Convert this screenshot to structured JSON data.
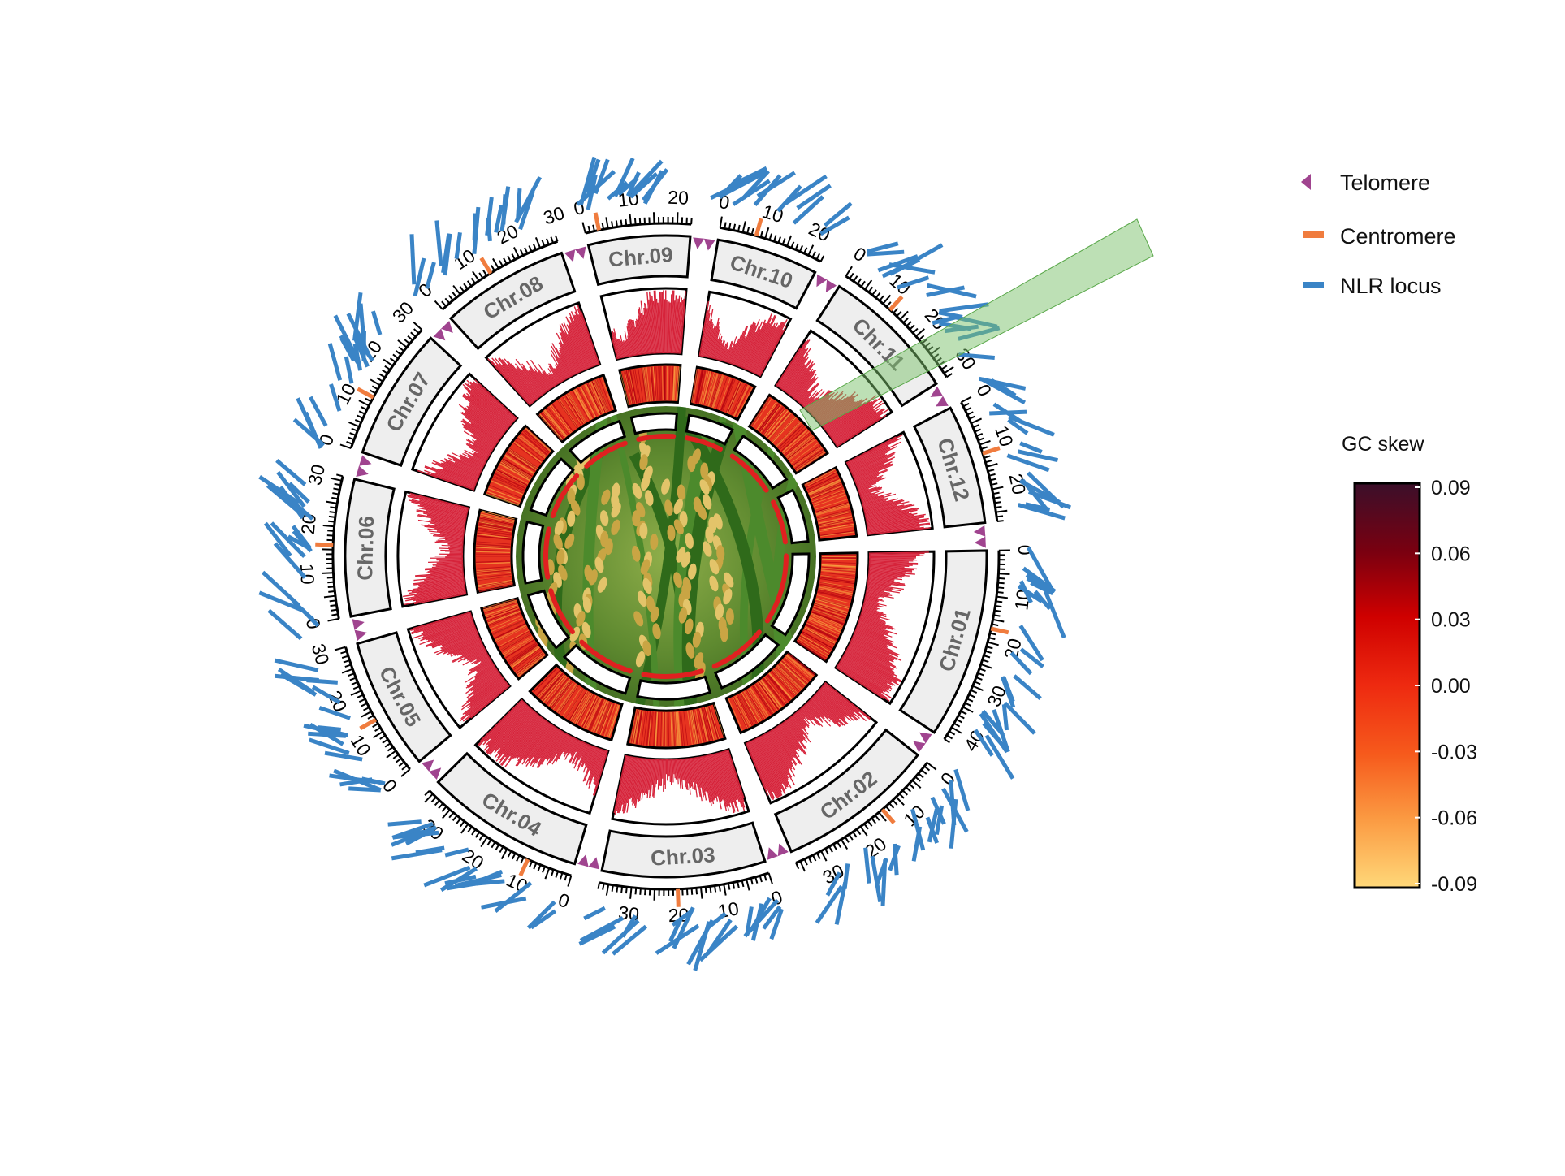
{
  "legend": {
    "items": [
      {
        "label": "Telomere",
        "icon": "telomere-triangle-icon",
        "color": "#a0448f"
      },
      {
        "label": "Centromere",
        "icon": "centromere-bar-icon",
        "color": "#f07c3e"
      },
      {
        "label": "NLR locus",
        "icon": "nlr-bar-icon",
        "color": "#3a84c6"
      }
    ]
  },
  "gc_skew_scale": {
    "title": "GC skew",
    "ticks": [
      "0.09",
      "0.06",
      "0.03",
      "0.00",
      "-0.03",
      "-0.06",
      "-0.09"
    ],
    "colors": [
      "#3b0f2a",
      "#7a0010",
      "#cf0000",
      "#ee2a10",
      "#f65a1c",
      "#fb9a42",
      "#ffd879"
    ]
  },
  "colors": {
    "chromosome_fill": "#eeeeee",
    "density": "#d6233a",
    "heat": "#e63320",
    "centromere": "#f07c3e",
    "telomere": "#a0448f",
    "nlr": "#3a84c6",
    "highlight": "#7bc26b",
    "gap_line": "#e02020"
  },
  "center_image": {
    "description_icon": "rice-panicle-photo"
  },
  "chromosomes": [
    {
      "name": "Chr.01",
      "length": 43,
      "ticks": [
        "0",
        "10",
        "20",
        "30",
        "40"
      ],
      "centromere": 17
    },
    {
      "name": "Chr.02",
      "length": 36,
      "ticks": [
        "0",
        "10",
        "20",
        "30"
      ],
      "centromere": 14
    },
    {
      "name": "Chr.03",
      "length": 37,
      "ticks": [
        "0",
        "10",
        "20",
        "30"
      ],
      "centromere": 20
    },
    {
      "name": "Chr.04",
      "length": 36,
      "ticks": [
        "0",
        "10",
        "20",
        "30"
      ],
      "centromere": 10
    },
    {
      "name": "Chr.05",
      "length": 30,
      "ticks": [
        "0",
        "10",
        "20",
        "30"
      ],
      "centromere": 13
    },
    {
      "name": "Chr.06",
      "length": 31,
      "ticks": [
        "0",
        "10",
        "20",
        "30"
      ],
      "centromere": 16
    },
    {
      "name": "Chr.07",
      "length": 30,
      "ticks": [
        "0",
        "10",
        "20",
        "30"
      ],
      "centromere": 12
    },
    {
      "name": "Chr.08",
      "length": 29,
      "ticks": [
        "0",
        "10",
        "20",
        "30"
      ],
      "centromere": 13
    },
    {
      "name": "Chr.09",
      "length": 23,
      "ticks": [
        "0",
        "10",
        "20"
      ],
      "centromere": 3
    },
    {
      "name": "Chr.10",
      "length": 23,
      "ticks": [
        "0",
        "10",
        "20"
      ],
      "centromere": 8
    },
    {
      "name": "Chr.11",
      "length": 31,
      "ticks": [
        "0",
        "10",
        "20",
        "30"
      ],
      "centromere": 12
    },
    {
      "name": "Chr.12",
      "length": 27,
      "ticks": [
        "0",
        "10",
        "20"
      ],
      "centromere": 12
    }
  ]
}
